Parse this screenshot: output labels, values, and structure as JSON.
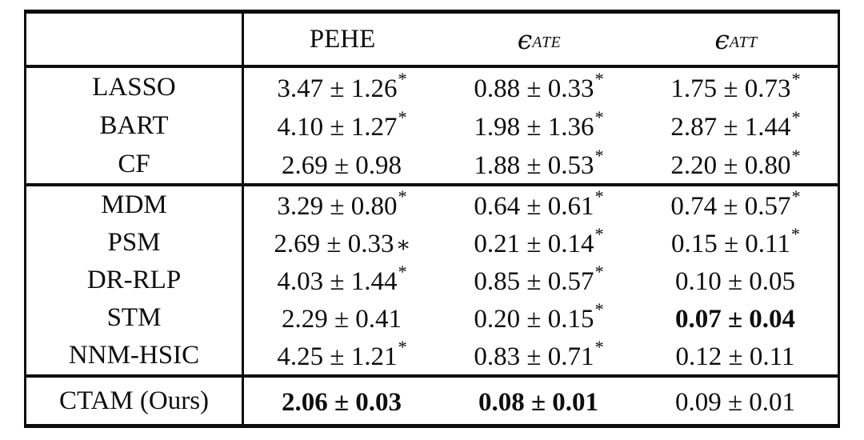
{
  "table": {
    "header": {
      "c1": "PEHE",
      "c2_sym": "ϵ",
      "c2_sub": "ATE",
      "c3_sym": "ϵ",
      "c3_sub": "ATT"
    },
    "groups": [
      {
        "rows": [
          {
            "name": "LASSO",
            "cells": [
              {
                "v": "3.47 ± 1.26",
                "sup": "*",
                "base": "",
                "b": "false"
              },
              {
                "v": "0.88 ± 0.33",
                "sup": "*",
                "base": "",
                "b": "false"
              },
              {
                "v": "1.75 ± 0.73",
                "sup": "*",
                "base": "",
                "b": "false"
              }
            ]
          },
          {
            "name": "BART",
            "cells": [
              {
                "v": "4.10 ± 1.27",
                "sup": "*",
                "base": "",
                "b": "false"
              },
              {
                "v": "1.98 ± 1.36",
                "sup": "*",
                "base": "",
                "b": "false"
              },
              {
                "v": "2.87 ± 1.44",
                "sup": "*",
                "base": "",
                "b": "false"
              }
            ]
          },
          {
            "name": "CF",
            "cells": [
              {
                "v": "2.69 ± 0.98",
                "sup": "",
                "base": "",
                "b": "false"
              },
              {
                "v": "1.88 ± 0.53",
                "sup": "*",
                "base": "",
                "b": "false"
              },
              {
                "v": "2.20 ± 0.80",
                "sup": "*",
                "base": "",
                "b": "false"
              }
            ]
          }
        ]
      },
      {
        "rows": [
          {
            "name": "MDM",
            "cells": [
              {
                "v": "3.29 ± 0.80",
                "sup": "*",
                "base": "",
                "b": "false"
              },
              {
                "v": "0.64 ± 0.61",
                "sup": "*",
                "base": "",
                "b": "false"
              },
              {
                "v": "0.74 ± 0.57",
                "sup": "*",
                "base": "",
                "b": "false"
              }
            ]
          },
          {
            "name": "PSM",
            "cells": [
              {
                "v": "2.69 ± 0.33",
                "sup": "",
                "base": "∗",
                "b": "false"
              },
              {
                "v": "0.21 ± 0.14",
                "sup": "*",
                "base": "",
                "b": "false"
              },
              {
                "v": "0.15 ± 0.11",
                "sup": "*",
                "base": "",
                "b": "false"
              }
            ]
          },
          {
            "name": "DR-RLP",
            "cells": [
              {
                "v": "4.03 ± 1.44",
                "sup": "*",
                "base": "",
                "b": "false"
              },
              {
                "v": "0.85 ± 0.57",
                "sup": "*",
                "base": "",
                "b": "false"
              },
              {
                "v": "0.10 ± 0.05",
                "sup": "",
                "base": "",
                "b": "false"
              }
            ]
          },
          {
            "name": "STM",
            "cells": [
              {
                "v": "2.29 ± 0.41",
                "sup": "",
                "base": "",
                "b": "false"
              },
              {
                "v": "0.20 ± 0.15",
                "sup": "*",
                "base": "",
                "b": "false"
              },
              {
                "v": "0.07 ± 0.04",
                "sup": "",
                "base": "",
                "b": "true"
              }
            ]
          },
          {
            "name": "NNM-HSIC",
            "cells": [
              {
                "v": "4.25 ± 1.21",
                "sup": "*",
                "base": "",
                "b": "false"
              },
              {
                "v": "0.83 ± 0.71",
                "sup": "*",
                "base": "",
                "b": "false"
              },
              {
                "v": "0.12 ± 0.11",
                "sup": "",
                "base": "",
                "b": "false"
              }
            ]
          }
        ]
      },
      {
        "rows": [
          {
            "name": "CTAM (Ours)",
            "cells": [
              {
                "v": "2.06 ± 0.03",
                "sup": "",
                "base": "",
                "b": "true"
              },
              {
                "v": "0.08 ± 0.01",
                "sup": "",
                "base": "",
                "b": "true"
              },
              {
                "v": "0.09 ± 0.01",
                "sup": "",
                "base": "",
                "b": "false"
              }
            ]
          }
        ]
      }
    ]
  }
}
